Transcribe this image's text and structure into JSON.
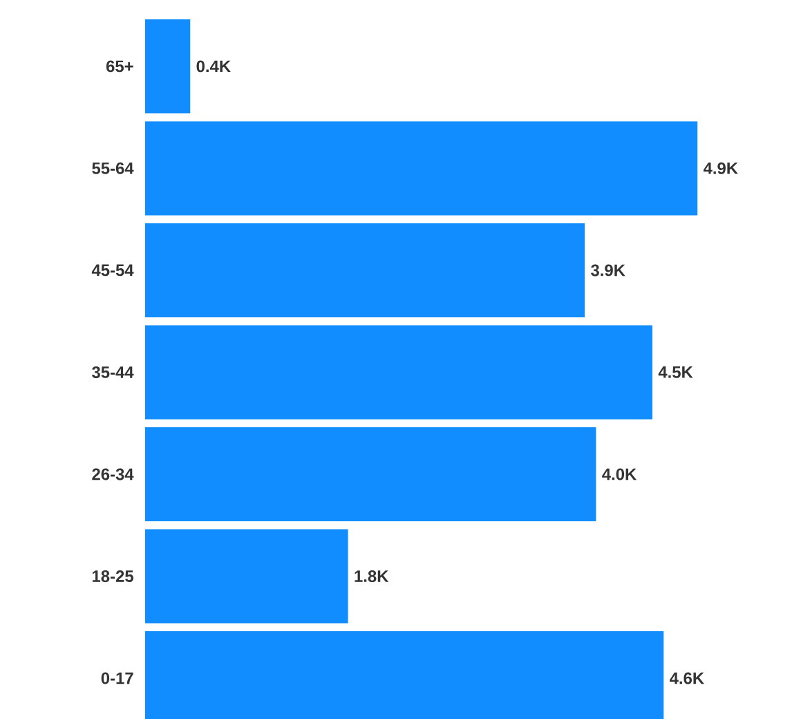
{
  "chart_data": {
    "type": "bar",
    "orientation": "horizontal",
    "tick_labels": "y",
    "color": "#118dff",
    "categories": [
      "65+",
      "55-64",
      "45-54",
      "35-44",
      "26-34",
      "18-25",
      "0-17"
    ],
    "values": [
      0.4,
      4.9,
      3.9,
      4.5,
      4.0,
      1.8,
      4.6
    ],
    "value_labels": [
      "0.4K",
      "4.9K",
      "3.9K",
      "4.5K",
      "4.0K",
      "1.8K",
      "4.6K"
    ]
  }
}
